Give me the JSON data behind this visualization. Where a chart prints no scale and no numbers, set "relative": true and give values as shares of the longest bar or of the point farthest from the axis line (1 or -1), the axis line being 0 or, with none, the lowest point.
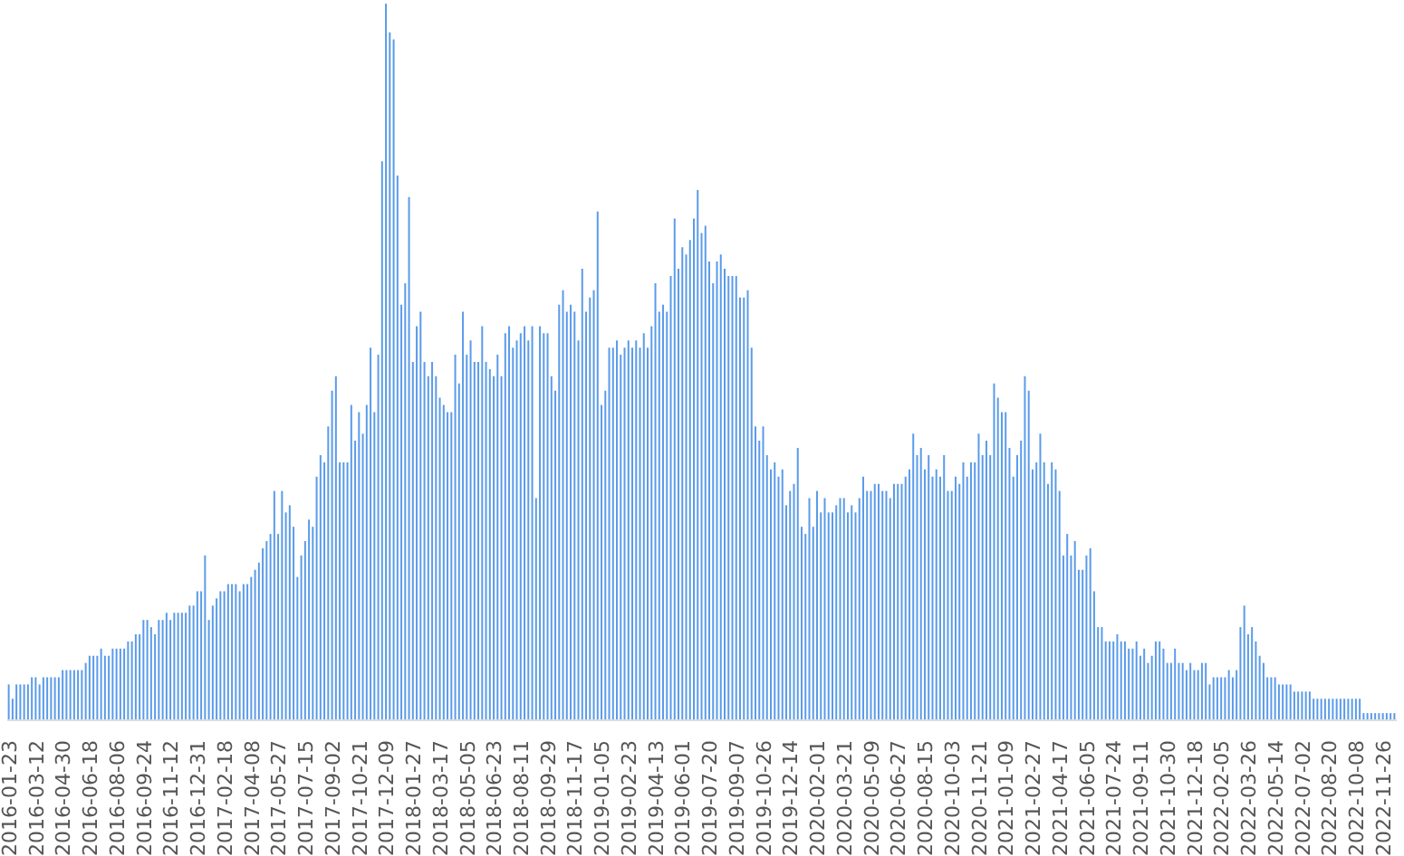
{
  "chart_data": {
    "type": "bar",
    "relative": true,
    "color": "#5a9bea",
    "categories": [
      "2016-01-23",
      null,
      null,
      null,
      null,
      null,
      null,
      "2016-03-12",
      null,
      null,
      null,
      null,
      null,
      null,
      "2016-04-30",
      null,
      null,
      null,
      null,
      null,
      null,
      "2016-06-18",
      null,
      null,
      null,
      null,
      null,
      null,
      "2016-08-06",
      null,
      null,
      null,
      null,
      null,
      null,
      "2016-09-24",
      null,
      null,
      null,
      null,
      null,
      null,
      "2016-11-12",
      null,
      null,
      null,
      null,
      null,
      null,
      "2016-12-31",
      null,
      null,
      null,
      null,
      null,
      null,
      "2017-02-18",
      null,
      null,
      null,
      null,
      null,
      null,
      "2017-04-08",
      null,
      null,
      null,
      null,
      null,
      null,
      "2017-05-27",
      null,
      null,
      null,
      null,
      null,
      null,
      "2017-07-15",
      null,
      null,
      null,
      null,
      null,
      null,
      "2017-09-02",
      null,
      null,
      null,
      null,
      null,
      null,
      "2017-10-21",
      null,
      null,
      null,
      null,
      null,
      null,
      "2017-12-09",
      null,
      null,
      null,
      null,
      null,
      null,
      "2018-01-27",
      null,
      null,
      null,
      null,
      null,
      null,
      "2018-03-17",
      null,
      null,
      null,
      null,
      null,
      null,
      "2018-05-05",
      null,
      null,
      null,
      null,
      null,
      null,
      "2018-06-23",
      null,
      null,
      null,
      null,
      null,
      null,
      "2018-08-11",
      null,
      null,
      null,
      null,
      null,
      null,
      "2018-09-29",
      null,
      null,
      null,
      null,
      null,
      null,
      "2018-11-17",
      null,
      null,
      null,
      null,
      null,
      null,
      "2019-01-05",
      null,
      null,
      null,
      null,
      null,
      null,
      "2019-02-23",
      null,
      null,
      null,
      null,
      null,
      null,
      "2019-04-13",
      null,
      null,
      null,
      null,
      null,
      null,
      "2019-06-01",
      null,
      null,
      null,
      null,
      null,
      null,
      "2019-07-20",
      null,
      null,
      null,
      null,
      null,
      null,
      "2019-09-07",
      null,
      null,
      null,
      null,
      null,
      null,
      "2019-10-26",
      null,
      null,
      null,
      null,
      null,
      null,
      "2019-12-14",
      null,
      null,
      null,
      null,
      null,
      null,
      "2020-02-01",
      null,
      null,
      null,
      null,
      null,
      null,
      "2020-03-21",
      null,
      null,
      null,
      null,
      null,
      null,
      "2020-05-09",
      null,
      null,
      null,
      null,
      null,
      null,
      "2020-06-27",
      null,
      null,
      null,
      null,
      null,
      null,
      "2020-08-15",
      null,
      null,
      null,
      null,
      null,
      null,
      "2020-10-03",
      null,
      null,
      null,
      null,
      null,
      null,
      "2020-11-21",
      null,
      null,
      null,
      null,
      null,
      null,
      "2021-01-09",
      null,
      null,
      null,
      null,
      null,
      null,
      "2021-02-27",
      null,
      null,
      null,
      null,
      null,
      null,
      "2021-04-17",
      null,
      null,
      null,
      null,
      null,
      null,
      "2021-06-05",
      null,
      null,
      null,
      null,
      null,
      null,
      "2021-07-24",
      null,
      null,
      null,
      null,
      null,
      null,
      "2021-09-11",
      null,
      null,
      null,
      null,
      null,
      null,
      "2021-10-30",
      null,
      null,
      null,
      null,
      null,
      null,
      "2021-12-18",
      null,
      null,
      null,
      null,
      null,
      null,
      "2022-02-05",
      null,
      null,
      null,
      null,
      null,
      null,
      "2022-03-26",
      null,
      null,
      null,
      null,
      null,
      null,
      "2022-05-14",
      null,
      null,
      null,
      null,
      null,
      null,
      "2022-07-02",
      null,
      null,
      null,
      null,
      null,
      null,
      "2022-08-20",
      null,
      null,
      null,
      null,
      null,
      null,
      "2022-10-08",
      null,
      null,
      null,
      null,
      null,
      null,
      "2022-11-26",
      null,
      null,
      null
    ],
    "values": [
      0.05,
      0.03,
      0.05,
      0.05,
      0.05,
      0.05,
      0.06,
      0.06,
      0.05,
      0.06,
      0.06,
      0.06,
      0.06,
      0.06,
      0.07,
      0.07,
      0.07,
      0.07,
      0.07,
      0.07,
      0.08,
      0.09,
      0.09,
      0.09,
      0.1,
      0.09,
      0.09,
      0.1,
      0.1,
      0.1,
      0.1,
      0.11,
      0.11,
      0.12,
      0.12,
      0.14,
      0.14,
      0.13,
      0.12,
      0.14,
      0.14,
      0.15,
      0.14,
      0.15,
      0.15,
      0.15,
      0.15,
      0.16,
      0.16,
      0.18,
      0.18,
      0.23,
      0.14,
      0.16,
      0.17,
      0.18,
      0.18,
      0.19,
      0.19,
      0.19,
      0.18,
      0.19,
      0.19,
      0.2,
      0.21,
      0.22,
      0.24,
      0.25,
      0.26,
      0.32,
      0.26,
      0.32,
      0.29,
      0.3,
      0.27,
      0.2,
      0.23,
      0.25,
      0.28,
      0.27,
      0.34,
      0.37,
      0.36,
      0.41,
      0.46,
      0.48,
      0.36,
      0.36,
      0.36,
      0.44,
      0.39,
      0.43,
      0.4,
      0.44,
      0.52,
      0.43,
      0.51,
      0.78,
      1,
      0.96,
      0.95,
      0.76,
      0.58,
      0.61,
      0.73,
      0.5,
      0.55,
      0.57,
      0.5,
      0.48,
      0.5,
      0.48,
      0.45,
      0.44,
      0.43,
      0.43,
      0.51,
      0.47,
      0.57,
      0.51,
      0.53,
      0.5,
      0.5,
      0.55,
      0.5,
      0.49,
      0.48,
      0.51,
      0.48,
      0.54,
      0.55,
      0.52,
      0.53,
      0.54,
      0.55,
      0.53,
      0.55,
      0.31,
      0.55,
      0.54,
      0.54,
      0.48,
      0.46,
      0.58,
      0.6,
      0.57,
      0.58,
      0.57,
      0.53,
      0.63,
      0.57,
      0.59,
      0.6,
      0.71,
      0.44,
      0.46,
      0.52,
      0.52,
      0.53,
      0.51,
      0.52,
      0.53,
      0.52,
      0.53,
      0.52,
      0.54,
      0.52,
      0.55,
      0.61,
      0.57,
      0.58,
      0.57,
      0.62,
      0.7,
      0.63,
      0.66,
      0.65,
      0.67,
      0.7,
      0.74,
      0.68,
      0.69,
      0.64,
      0.61,
      0.64,
      0.65,
      0.63,
      0.62,
      0.62,
      0.62,
      0.59,
      0.59,
      0.6,
      0.52,
      0.41,
      0.39,
      0.41,
      0.37,
      0.35,
      0.36,
      0.34,
      0.35,
      0.3,
      0.32,
      0.33,
      0.38,
      0.27,
      0.26,
      0.31,
      0.27,
      0.32,
      0.29,
      0.31,
      0.29,
      0.29,
      0.3,
      0.31,
      0.31,
      0.29,
      0.3,
      0.29,
      0.31,
      0.34,
      0.32,
      0.32,
      0.33,
      0.33,
      0.32,
      0.32,
      0.31,
      0.33,
      0.33,
      0.33,
      0.34,
      0.35,
      0.4,
      0.37,
      0.38,
      0.35,
      0.37,
      0.34,
      0.35,
      0.34,
      0.37,
      0.32,
      0.32,
      0.34,
      0.33,
      0.36,
      0.34,
      0.36,
      0.36,
      0.4,
      0.37,
      0.39,
      0.37,
      0.47,
      0.45,
      0.43,
      0.43,
      0.38,
      0.34,
      0.37,
      0.39,
      0.48,
      0.46,
      0.35,
      0.36,
      0.4,
      0.36,
      0.33,
      0.36,
      0.35,
      0.32,
      0.23,
      0.26,
      0.23,
      0.25,
      0.21,
      0.21,
      0.23,
      0.24,
      0.18,
      0.13,
      0.13,
      0.11,
      0.11,
      0.11,
      0.12,
      0.11,
      0.11,
      0.1,
      0.1,
      0.11,
      0.09,
      0.1,
      0.08,
      0.09,
      0.11,
      0.11,
      0.1,
      0.08,
      0.08,
      0.1,
      0.08,
      0.08,
      0.07,
      0.08,
      0.07,
      0.07,
      0.08,
      0.08,
      0.05,
      0.06,
      0.06,
      0.06,
      0.06,
      0.07,
      0.06,
      0.07,
      0.13,
      0.16,
      0.12,
      0.13,
      0.11,
      0.09,
      0.08,
      0.06,
      0.06,
      0.06,
      0.05,
      0.05,
      0.05,
      0.05,
      0.04,
      0.04,
      0.04,
      0.04,
      0.04,
      0.03,
      0.03,
      0.03,
      0.03,
      0.03,
      0.03,
      0.03,
      0.03,
      0.03,
      0.03,
      0.03,
      0.03,
      0.03,
      0.01,
      0.01,
      0.01,
      0.01,
      0.01,
      0.01,
      0.01,
      0.01,
      0.01
    ]
  }
}
